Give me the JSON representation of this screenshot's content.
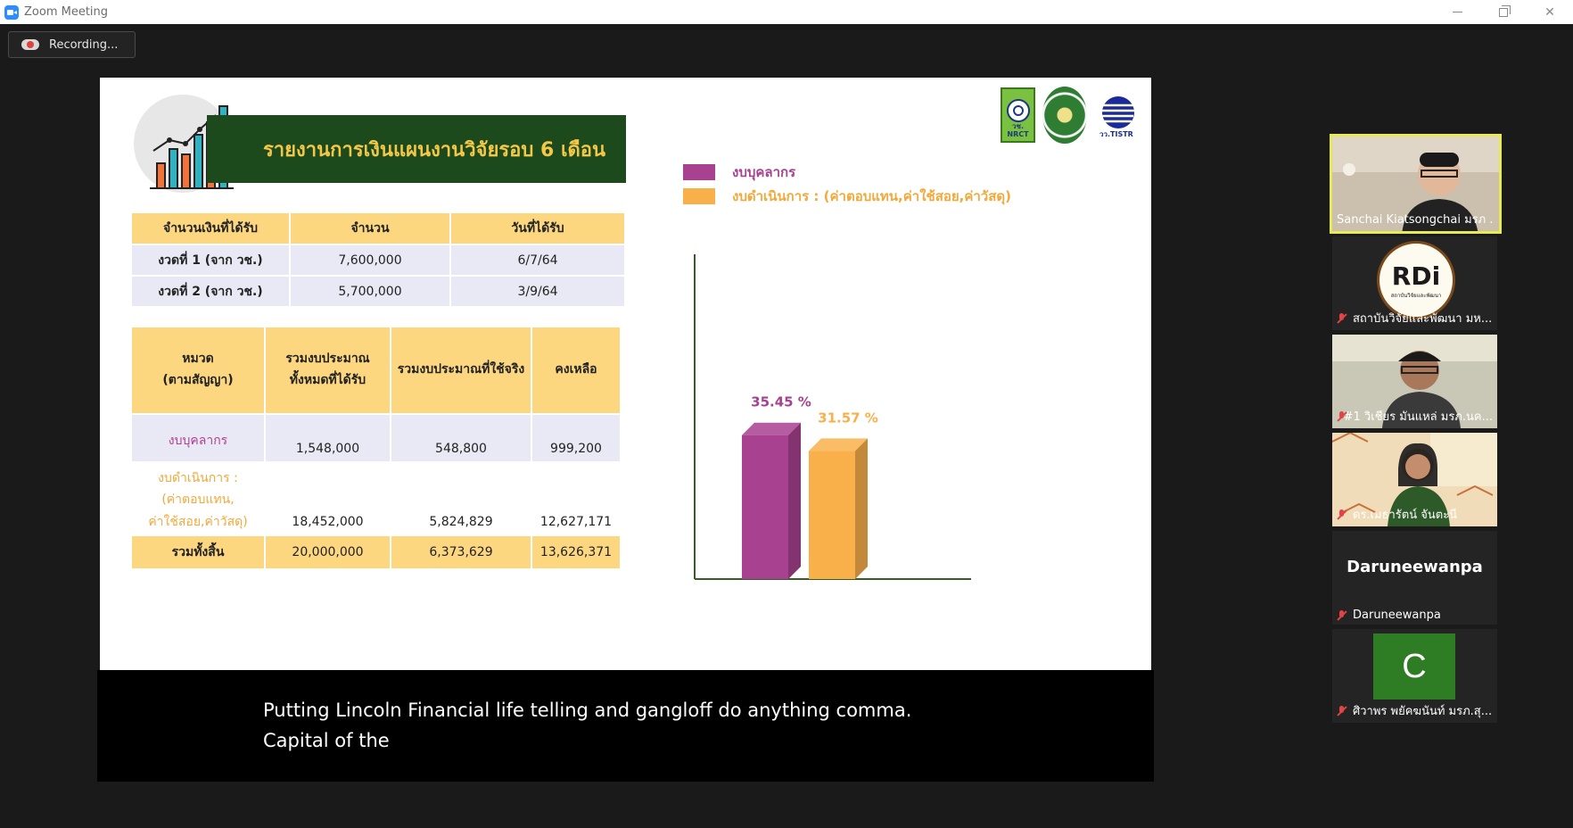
{
  "window": {
    "title": "Zoom Meeting"
  },
  "recording": {
    "label": "Recording..."
  },
  "slide": {
    "title": "รายงานการเงินแผนงานวิจัยรอบ 6 เดือน",
    "logos": {
      "nrct_text": "วช.\nNRCT",
      "tistr_text": "วว.TISTR"
    },
    "receipts_table": {
      "headers": [
        "จำนวนเงินที่ได้รับ",
        "จำนวน",
        "วันที่ได้รับ"
      ],
      "rows": [
        {
          "label": "งวดที่ 1 (จาก วช.)",
          "amount": "7,600,000",
          "date": "6/7/64"
        },
        {
          "label": "งวดที่ 2 (จาก วช.)",
          "amount": "5,700,000",
          "date": "3/9/64"
        }
      ]
    },
    "budget_table": {
      "headers": {
        "category_line1": "หมวด",
        "category_line2": "(ตามสัญญา)",
        "received_line1": "รวมงบประมาณ",
        "received_line2": "ทั้งหมดที่ได้รับ",
        "spent": "รวมงบประมาณที่ใช้จริง",
        "remaining": "คงเหลือ"
      },
      "rows": [
        {
          "label": "งบบุคลากร",
          "received": "1,548,000",
          "spent": "548,800",
          "remaining": "999,200"
        },
        {
          "label_line1": "งบดำเนินการ :",
          "label_line2": "(ค่าตอบแทน,",
          "label_line3": "ค่าใช้สอย,ค่าวัสดุ)",
          "received": "18,452,000",
          "spent": "5,824,829",
          "remaining": "12,627,171"
        }
      ],
      "total": {
        "label": "รวมทั้งสิ้น",
        "received": "20,000,000",
        "spent": "6,373,629",
        "remaining": "13,626,371"
      }
    }
  },
  "chart_data": {
    "type": "bar",
    "categories": [
      "งบบุคลากร",
      "งบดำเนินการ : (ค่าตอบแทน,ค่าใช้สอย,ค่าวัสดุ)"
    ],
    "values": [
      35.45,
      31.57
    ],
    "data_labels": [
      "35.45 %",
      "31.57 %"
    ],
    "colors": [
      "#a8418f",
      "#f9b04a"
    ],
    "legend": [
      "งบบุคลากร",
      "งบดำเนินการ : (ค่าตอบแทน,ค่าใช้สอย,ค่าวัสดุ)"
    ],
    "legend_position": "top",
    "ylim": [
      0,
      80
    ],
    "grid": false
  },
  "captions": {
    "line1": "Putting Lincoln Financial life telling and gangloff do anything comma.",
    "line2": "Capital of the"
  },
  "participants": [
    {
      "name": "Sanchai Kiatsongchai มรภ ...",
      "muted": false,
      "active": true
    },
    {
      "name": "สถาบันวิจัยและพัฒนา มห...",
      "muted": true,
      "logo_text": "RDi",
      "logo_sub": "สถาบันวิจัยและพัฒนา"
    },
    {
      "name": "#1 วิเชียร มันแหล่ มรภ.นค...",
      "muted": true
    },
    {
      "name": "ดร.เมธารัตน์  จันตะนี",
      "muted": true
    },
    {
      "name": "Daruneewanpa",
      "display_name": "Daruneewanpa",
      "muted": true
    },
    {
      "name": "ศิวาพร พยัคฆนันท์ มรภ.สุ...",
      "muted": true,
      "initial": "C"
    }
  ]
}
